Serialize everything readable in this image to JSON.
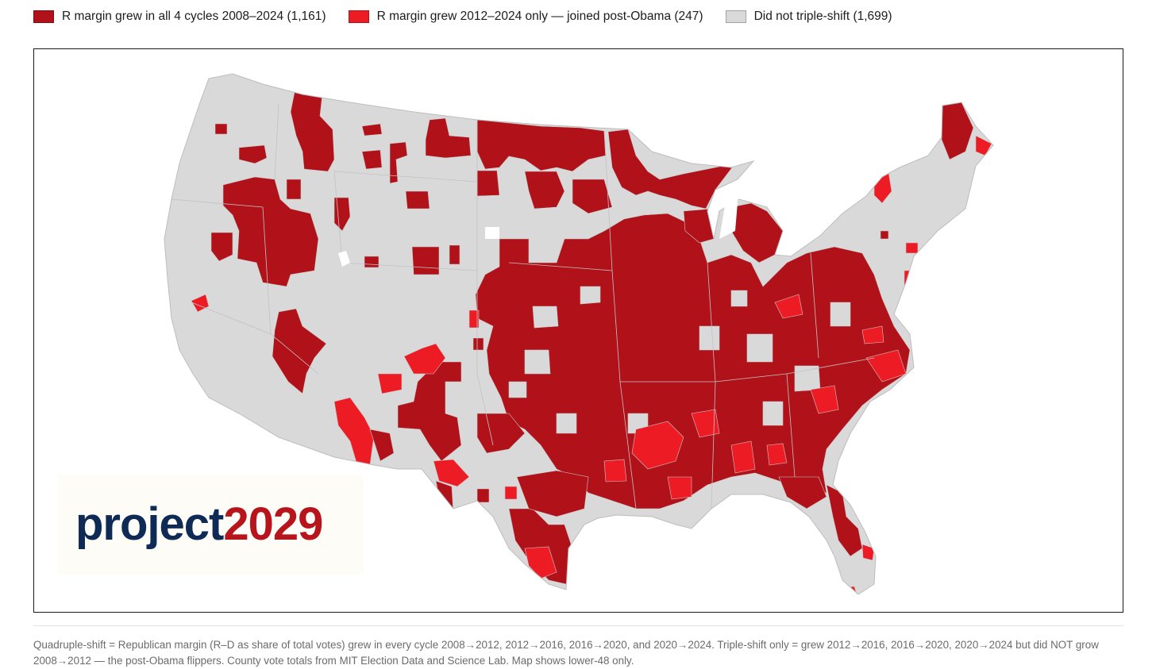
{
  "legend": [
    {
      "label": "R margin grew in all 4 cycles 2008–2024 (1,161)",
      "color": "#b1121a"
    },
    {
      "label": "R margin grew 2012–2024 only — joined post-Obama (247)",
      "color": "#ed1c24"
    },
    {
      "label": "Did not triple-shift (1,699)",
      "color": "#d9d9d9"
    }
  ],
  "map": {
    "region": "lower-48",
    "colors": {
      "quad": "#b1121a",
      "triple": "#ed1c24",
      "none": "#d9d9d9",
      "border": "#c4c4c4"
    }
  },
  "logo": {
    "part1": "project",
    "part2": "2029"
  },
  "footnote": "Quadruple-shift = Republican margin (R–D as share of total votes) grew in every cycle 2008→2012, 2012→2016, 2016→2020, and 2020→2024. Triple-shift only = grew 2012→2016, 2016→2020, 2020→2024 but did NOT grow 2008→2012 — the post-Obama flippers. County vote totals from MIT Election Data and Science Lab. Map shows lower-48 only."
}
